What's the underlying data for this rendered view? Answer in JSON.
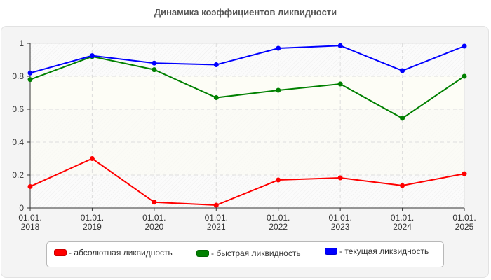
{
  "header": {
    "title": "Динамика коэффициентов ликвидности"
  },
  "chart_data": {
    "type": "line",
    "title": "Динамика коэффициентов ликвидности",
    "xlabel": "",
    "ylabel": "",
    "ylim": [
      0,
      1
    ],
    "yticks": [
      "0",
      "0.2",
      "0.4",
      "0.6",
      "0.8",
      "1"
    ],
    "categories": [
      "01.01. 2018",
      "01.01. 2019",
      "01.01. 2020",
      "01.01. 2021",
      "01.01. 2022",
      "01.01. 2023",
      "01.01. 2024",
      "01.01. 2025"
    ],
    "grid": true,
    "legend_position": "bottom",
    "series": [
      {
        "name": "- абсолютная ликвидность",
        "color": "#ff0000",
        "values": [
          0.13,
          0.3,
          0.035,
          0.017,
          0.17,
          0.183,
          0.136,
          0.208
        ]
      },
      {
        "name": "- быстрая ликвидность",
        "color": "#008000",
        "values": [
          0.78,
          0.92,
          0.84,
          0.67,
          0.715,
          0.753,
          0.545,
          0.8
        ]
      },
      {
        "name": "- текущая ликвидность",
        "color": "#0000ff",
        "values": [
          0.82,
          0.925,
          0.88,
          0.87,
          0.97,
          0.986,
          0.834,
          0.983
        ]
      }
    ]
  },
  "legend": {
    "items": [
      {
        "label": "- абсолютная ликвидность",
        "color": "#ff0000"
      },
      {
        "label": "- быстрая ликвидность",
        "color": "#008000"
      },
      {
        "label": "- текущая ликвидность",
        "color": "#0000ff"
      }
    ]
  }
}
